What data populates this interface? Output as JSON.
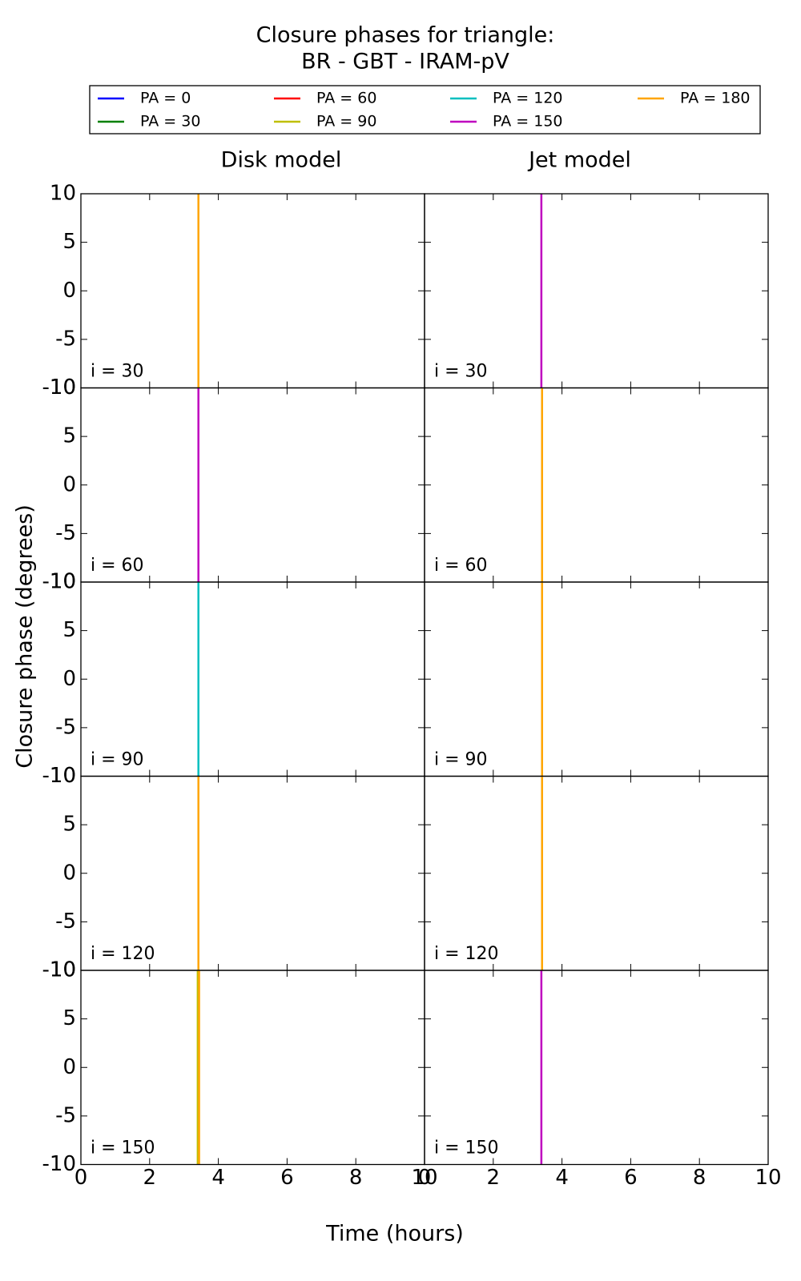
{
  "chart_data": {
    "type": "line",
    "title": "Closure phases for triangle:",
    "subtitle": "BR - GBT - IRAM-pV",
    "xlabel": "Time (hours)",
    "ylabel": "Closure phase (degrees)",
    "columns": [
      "Disk model",
      "Jet model"
    ],
    "series": [
      {
        "name": "PA = 0",
        "color": "#0000ff"
      },
      {
        "name": "PA = 30",
        "color": "#008000"
      },
      {
        "name": "PA = 60",
        "color": "#ff0000"
      },
      {
        "name": "PA = 90",
        "color": "#bfbf00"
      },
      {
        "name": "PA = 120",
        "color": "#00bfbf"
      },
      {
        "name": "PA = 150",
        "color": "#bf00bf"
      },
      {
        "name": "PA = 180",
        "color": "#ffa500"
      }
    ],
    "xlim": [
      0,
      10
    ],
    "xticks": [
      0,
      2,
      4,
      6,
      8,
      10
    ],
    "ylim": [
      -10,
      10
    ],
    "yticks": [
      -10,
      -5,
      0,
      5,
      10
    ],
    "panels": [
      {
        "label": "i = 30",
        "row": 0,
        "col": 0,
        "lines": [
          {
            "color": "#ffa500",
            "x": [
              3.42,
              3.42
            ],
            "values": [
              -10,
              10
            ]
          }
        ]
      },
      {
        "label": "i = 30",
        "row": 0,
        "col": 1,
        "lines": [
          {
            "color": "#bf00bf",
            "x": [
              3.4,
              3.4
            ],
            "values": [
              -10,
              10
            ]
          }
        ]
      },
      {
        "label": "i = 60",
        "row": 1,
        "col": 0,
        "lines": [
          {
            "color": "#bf00bf",
            "x": [
              3.42,
              3.42
            ],
            "values": [
              -10,
              10
            ]
          }
        ]
      },
      {
        "label": "i = 60",
        "row": 1,
        "col": 1,
        "lines": [
          {
            "color": "#ffa500",
            "x": [
              3.42,
              3.42
            ],
            "values": [
              -10,
              10
            ]
          }
        ]
      },
      {
        "label": "i = 90",
        "row": 2,
        "col": 0,
        "lines": [
          {
            "color": "#00bfbf",
            "x": [
              3.42,
              3.42
            ],
            "values": [
              -10,
              10
            ]
          }
        ]
      },
      {
        "label": "i = 90",
        "row": 2,
        "col": 1,
        "lines": [
          {
            "color": "#ffa500",
            "x": [
              3.42,
              3.42
            ],
            "values": [
              -10,
              10
            ]
          }
        ]
      },
      {
        "label": "i = 120",
        "row": 3,
        "col": 0,
        "lines": [
          {
            "color": "#ffa500",
            "x": [
              3.42,
              3.42
            ],
            "values": [
              -10,
              10
            ]
          }
        ]
      },
      {
        "label": "i = 120",
        "row": 3,
        "col": 1,
        "lines": [
          {
            "color": "#ffa500",
            "x": [
              3.42,
              3.42
            ],
            "values": [
              -10,
              10
            ]
          }
        ]
      },
      {
        "label": "i = 150",
        "row": 4,
        "col": 0,
        "lines": [
          {
            "color": "#bfbf00",
            "x": [
              3.4,
              3.4
            ],
            "values": [
              -10,
              10
            ]
          },
          {
            "color": "#ffa500",
            "x": [
              3.44,
              3.44
            ],
            "values": [
              -10,
              10
            ]
          }
        ]
      },
      {
        "label": "i = 150",
        "row": 4,
        "col": 1,
        "lines": [
          {
            "color": "#bf00bf",
            "x": [
              3.4,
              3.4
            ],
            "values": [
              -10,
              10
            ]
          }
        ]
      }
    ]
  }
}
